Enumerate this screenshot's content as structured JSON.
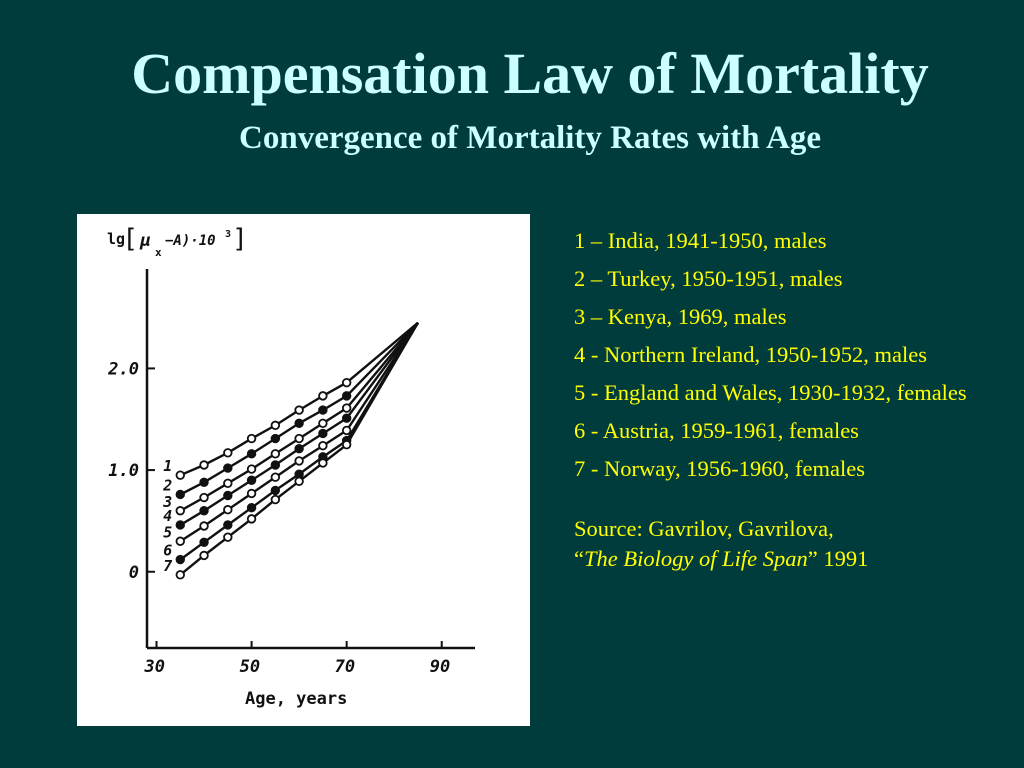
{
  "slide": {
    "title": "Compensation Law of Mortality",
    "subtitle": "Convergence of Mortality Rates with Age"
  },
  "legend": [
    "1 – India, 1941-1950, males",
    "2 – Turkey, 1950-1951, males",
    "3 – Kenya, 1969, males",
    "4 - Northern Ireland, 1950-1952, males",
    "5 - England and Wales, 1930-1932, females",
    "6 - Austria, 1959-1961, females",
    "7 - Norway, 1956-1960, females"
  ],
  "source": {
    "line1": "Source: Gavrilov, Gavrilova,",
    "open_quote": "“",
    "book": "The Biology of Life Span",
    "close_quote": "”",
    "year": " 1991"
  },
  "colors": {
    "background": "#003c3c",
    "title": "#ccffff",
    "legend_text": "#ffff00",
    "figure_bg": "#ffffff",
    "ink": "#111111"
  },
  "chart_data": {
    "type": "line",
    "ylabel_prefix": "lg",
    "ylabel_main": "μ",
    "ylabel_sub": "x",
    "ylabel_rest": "−A)·10",
    "ylabel_sup": "3",
    "xlabel": "Age, years",
    "x_ticks": [
      "30",
      "50",
      "70",
      "90"
    ],
    "y_ticks": [
      "0",
      "1.0",
      "2.0"
    ],
    "xlim": [
      28,
      97
    ],
    "ylim": [
      -0.75,
      2.85
    ],
    "grid": false,
    "convergence_point": [
      85,
      2.45
    ],
    "series": [
      {
        "name": "1",
        "marker": "open",
        "x": [
          35,
          40,
          45,
          50,
          55,
          60,
          65,
          70
        ],
        "y": [
          0.95,
          1.05,
          1.17,
          1.31,
          1.44,
          1.59,
          1.73,
          1.86
        ]
      },
      {
        "name": "2",
        "marker": "filled",
        "x": [
          35,
          40,
          45,
          50,
          55,
          60,
          65,
          70
        ],
        "y": [
          0.76,
          0.88,
          1.02,
          1.16,
          1.31,
          1.46,
          1.59,
          1.73
        ]
      },
      {
        "name": "3",
        "marker": "open",
        "x": [
          35,
          40,
          45,
          50,
          55,
          60,
          65,
          70
        ],
        "y": [
          0.6,
          0.73,
          0.87,
          1.01,
          1.16,
          1.31,
          1.46,
          1.61
        ]
      },
      {
        "name": "4",
        "marker": "filled",
        "x": [
          35,
          40,
          45,
          50,
          55,
          60,
          65,
          70
        ],
        "y": [
          0.46,
          0.6,
          0.75,
          0.9,
          1.05,
          1.21,
          1.36,
          1.51
        ]
      },
      {
        "name": "5",
        "marker": "open",
        "x": [
          35,
          40,
          45,
          50,
          55,
          60,
          65,
          70
        ],
        "y": [
          0.3,
          0.45,
          0.61,
          0.77,
          0.93,
          1.09,
          1.24,
          1.39
        ]
      },
      {
        "name": "6",
        "marker": "filled",
        "x": [
          35,
          40,
          45,
          50,
          55,
          60,
          65,
          70
        ],
        "y": [
          0.12,
          0.29,
          0.46,
          0.63,
          0.8,
          0.96,
          1.13,
          1.29
        ]
      },
      {
        "name": "7",
        "marker": "open",
        "x": [
          35,
          40,
          45,
          50,
          55,
          60,
          65,
          70
        ],
        "y": [
          -0.03,
          0.16,
          0.34,
          0.52,
          0.71,
          0.89,
          1.07,
          1.25
        ]
      }
    ]
  }
}
